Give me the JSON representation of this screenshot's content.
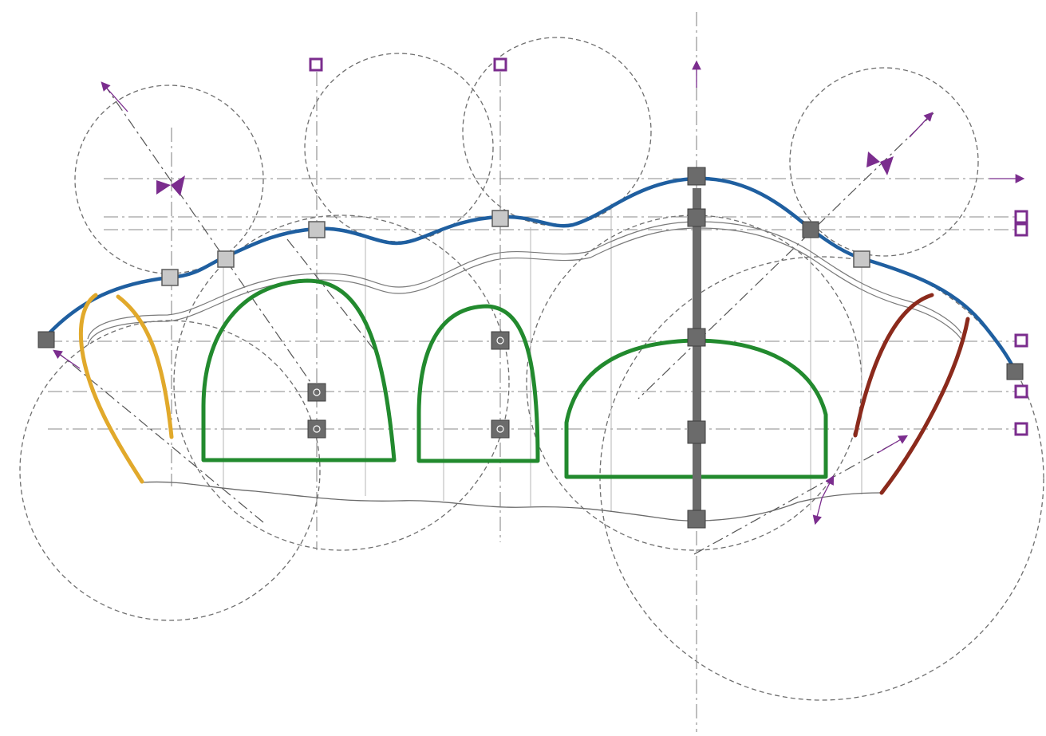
{
  "colors": {
    "roof_curve": "#1f5fa0",
    "left_arch": "#e1a92b",
    "openings": "#228a2e",
    "right_arch": "#8b2a1c",
    "markers": "#7b2d8e",
    "construction": "#777777",
    "grips": "#6b6b6b"
  },
  "icons": {
    "marker": "square-marker-icon",
    "grip": "grip-handle-icon",
    "arrow": "arrowhead-icon"
  }
}
